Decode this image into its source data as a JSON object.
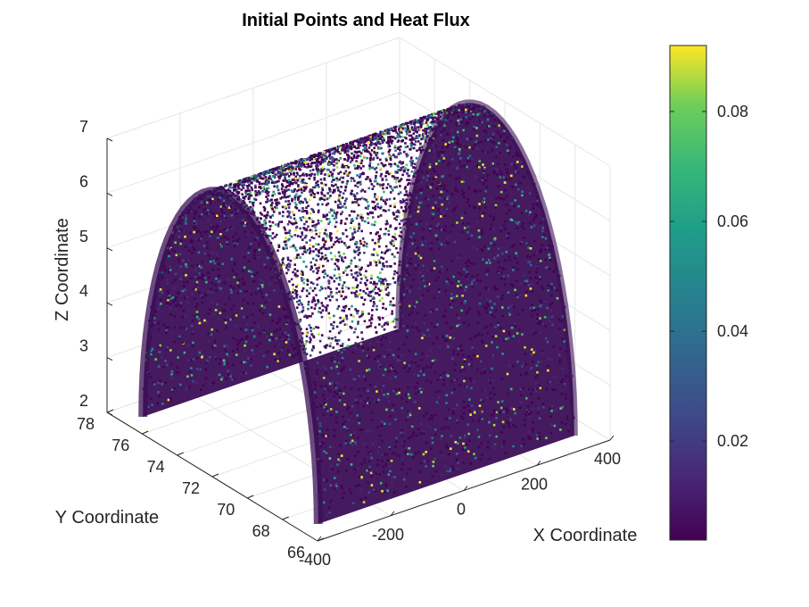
{
  "chart_data": {
    "type": "scatter",
    "projection": "3d",
    "title": "Initial Points and Heat Flux",
    "xlabel": "X Coordinate",
    "ylabel": "Y Coordinate",
    "zlabel": "Z Coordinate",
    "xlim": [
      -400,
      400
    ],
    "ylim": [
      66,
      78
    ],
    "zlim": [
      2,
      7
    ],
    "xticks": [
      "-400",
      "-200",
      "0",
      "200",
      "400"
    ],
    "yticks": [
      "66",
      "68",
      "70",
      "72",
      "74",
      "76",
      "78"
    ],
    "zticks": [
      "2",
      "3",
      "4",
      "5",
      "6",
      "7"
    ],
    "grid": true,
    "colormap": "viridis",
    "colorbar": {
      "position": "right",
      "range": [
        0.002,
        0.092
      ],
      "ticks": [
        "0.02",
        "0.04",
        "0.06",
        "0.08"
      ]
    },
    "surface": {
      "shape": "half-cylinder arch",
      "x_range": [
        -350,
        350
      ],
      "y_range": [
        67,
        77
      ],
      "z_base": 2,
      "z_top": 7,
      "color_mean_low": 0.005,
      "color_max": 0.092
    },
    "colors": {
      "viridis_low": "#440154",
      "viridis_mid": "#21918c",
      "viridis_high": "#fde725"
    }
  }
}
